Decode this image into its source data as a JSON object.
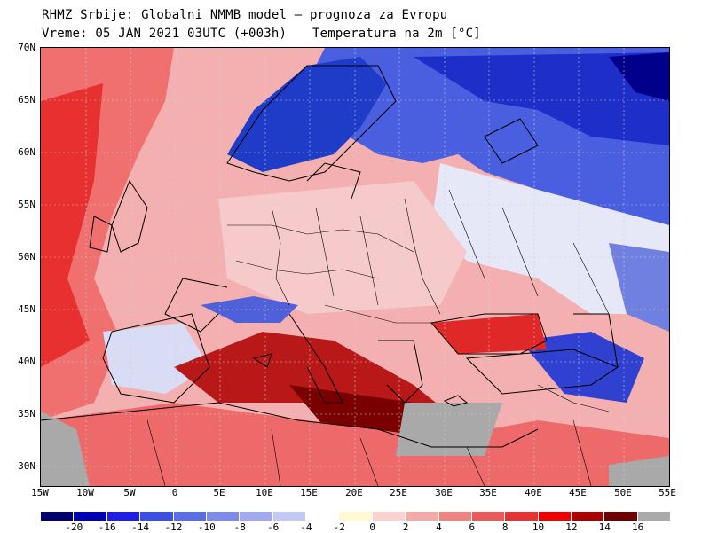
{
  "header": {
    "title_line1": "RHMZ Srbije: Globalni NMMB model — prognoza za Evropu",
    "title_line2": "Vreme: 05 JAN 2021 03UTC (+003h)",
    "variable": "Temperatura na 2m [°C]"
  },
  "map": {
    "lat_labels": [
      "70N",
      "65N",
      "60N",
      "55N",
      "50N",
      "45N",
      "40N",
      "35N",
      "30N"
    ],
    "lon_labels": [
      "15W",
      "10W",
      "5W",
      "0",
      "5E",
      "10E",
      "15E",
      "20E",
      "25E",
      "30E",
      "35E",
      "40E",
      "45E",
      "50E",
      "55E"
    ],
    "lon_range": [
      -15,
      55
    ],
    "lat_range": [
      28,
      70
    ],
    "colors": {
      "very_cold": "#00008b",
      "cold": "#1e3cdc",
      "cool": "#6478e6",
      "mild_blue": "#b4c0f0",
      "neutral": "#fffdd2",
      "light_pink": "#f6c6c6",
      "pink": "#ee9090",
      "red": "#e83030",
      "dark_red": "#a00000",
      "darkest": "#6e0000",
      "mask": "#a9a9a9"
    }
  },
  "legend": {
    "labels": [
      "-20",
      "-16",
      "-14",
      "-12",
      "-10",
      "-8",
      "-6",
      "-4",
      "-2",
      "0",
      "2",
      "4",
      "6",
      "8",
      "10",
      "12",
      "14",
      "16"
    ],
    "colors": [
      "#00006e",
      "#0000b4",
      "#1e1ee6",
      "#3c50e6",
      "#5a6ee6",
      "#7d8ceb",
      "#a0aaf0",
      "#c3c8f5",
      "#ffffff",
      "#fffad2",
      "#fad2d2",
      "#f5aaaa",
      "#f08282",
      "#eb5a5a",
      "#e63232",
      "#f00000",
      "#aa0000",
      "#6e0000",
      "#aaaaaa"
    ]
  }
}
